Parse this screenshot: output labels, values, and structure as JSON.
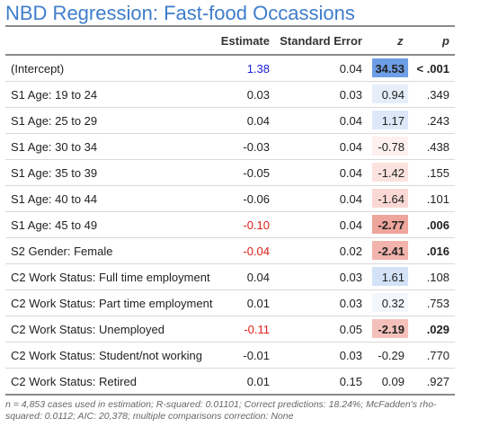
{
  "title": "NBD Regression: Fast-food Occassions",
  "columns": {
    "label": "",
    "estimate": "Estimate",
    "se": "Standard Error",
    "z": "z",
    "p": "p"
  },
  "colors": {
    "title": "#3e7dcc",
    "estimate_pos_sig": "#1a1adb",
    "estimate_neg_sig": "#e0201a",
    "z_strong_pos": "#6d9ee6",
    "z_pos": "#dce8f8",
    "z_neg_light": "#fbe6e3",
    "z_neg_mid": "#f6c8c2",
    "z_neg_strong": "#eea59c"
  },
  "rows": [
    {
      "label": "(Intercept)",
      "estimate": "1.38",
      "se": "0.04",
      "z": "34.53",
      "p": "< .001",
      "est_color": "#1a1adb",
      "z_bg": "#6d9ee6",
      "bold": true
    },
    {
      "label": "S1 Age: 19 to 24",
      "estimate": "0.03",
      "se": "0.03",
      "z": "0.94",
      "p": ".349",
      "est_color": "#222222",
      "z_bg": "#e6eefa",
      "bold": false
    },
    {
      "label": "S1 Age: 25 to 29",
      "estimate": "0.04",
      "se": "0.04",
      "z": "1.17",
      "p": ".243",
      "est_color": "#222222",
      "z_bg": "#dce8f8",
      "bold": false
    },
    {
      "label": "S1 Age: 30 to 34",
      "estimate": "-0.03",
      "se": "0.04",
      "z": "-0.78",
      "p": ".438",
      "est_color": "#222222",
      "z_bg": "#fdf0ee",
      "bold": false
    },
    {
      "label": "S1 Age: 35 to 39",
      "estimate": "-0.05",
      "se": "0.04",
      "z": "-1.42",
      "p": ".155",
      "est_color": "#222222",
      "z_bg": "#fbe2de",
      "bold": false
    },
    {
      "label": "S1 Age: 40 to 44",
      "estimate": "-0.06",
      "se": "0.04",
      "z": "-1.64",
      "p": ".101",
      "est_color": "#222222",
      "z_bg": "#fad8d3",
      "bold": false
    },
    {
      "label": "S1 Age: 45 to 49",
      "estimate": "-0.10",
      "se": "0.04",
      "z": "-2.77",
      "p": ".006",
      "est_color": "#e0201a",
      "z_bg": "#eea59c",
      "bold": true
    },
    {
      "label": "S2 Gender: Female",
      "estimate": "-0.04",
      "se": "0.02",
      "z": "-2.41",
      "p": ".016",
      "est_color": "#e0201a",
      "z_bg": "#f1b3ab",
      "bold": true
    },
    {
      "label": "C2 Work Status: Full time employment",
      "estimate": "0.04",
      "se": "0.03",
      "z": "1.61",
      "p": ".108",
      "est_color": "#222222",
      "z_bg": "#d3e2f6",
      "bold": false
    },
    {
      "label": "C2 Work Status: Part time employment",
      "estimate": "0.01",
      "se": "0.03",
      "z": "0.32",
      "p": ".753",
      "est_color": "#222222",
      "z_bg": "#f3f7fd",
      "bold": false
    },
    {
      "label": "C2 Work Status: Unemployed",
      "estimate": "-0.11",
      "se": "0.05",
      "z": "-2.19",
      "p": ".029",
      "est_color": "#e0201a",
      "z_bg": "#f4c1ba",
      "bold": true
    },
    {
      "label": "C2 Work Status: Student/not working",
      "estimate": "-0.01",
      "se": "0.03",
      "z": "-0.29",
      "p": ".770",
      "est_color": "#222222",
      "z_bg": "#ffffff",
      "bold": false
    },
    {
      "label": "C2 Work Status: Retired",
      "estimate": "0.01",
      "se": "0.15",
      "z": "0.09",
      "p": ".927",
      "est_color": "#222222",
      "z_bg": "#ffffff",
      "bold": false
    }
  ],
  "footnote": "n = 4,853 cases used in estimation; R-squared: 0.01101; Correct predictions: 18.24%; McFadden's rho-squared: 0.0112; AIC: 20,378; multiple comparisons correction: None"
}
